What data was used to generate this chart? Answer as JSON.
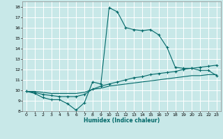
{
  "xlabel": "Humidex (Indice chaleur)",
  "background_color": "#c8e8e8",
  "grid_color": "#b0d0d0",
  "line_color": "#006868",
  "xlim": [
    -0.5,
    23.5
  ],
  "ylim": [
    8,
    18.5
  ],
  "xticks": [
    0,
    1,
    2,
    3,
    4,
    5,
    6,
    7,
    8,
    9,
    10,
    11,
    12,
    13,
    14,
    15,
    16,
    17,
    18,
    19,
    20,
    21,
    22,
    23
  ],
  "yticks": [
    8,
    9,
    10,
    11,
    12,
    13,
    14,
    15,
    16,
    17,
    18
  ],
  "series1_x": [
    0,
    1,
    2,
    3,
    4,
    5,
    6,
    7,
    8,
    9,
    10,
    11,
    12,
    13,
    14,
    15,
    16,
    17,
    18,
    19,
    20,
    21,
    22,
    23
  ],
  "series1_y": [
    9.9,
    9.7,
    9.3,
    9.1,
    9.1,
    8.7,
    8.1,
    8.8,
    10.8,
    10.6,
    17.9,
    17.5,
    16.0,
    15.8,
    15.7,
    15.8,
    15.3,
    14.1,
    12.2,
    12.1,
    12.1,
    11.9,
    11.9,
    11.4
  ],
  "series2_x": [
    0,
    1,
    2,
    3,
    4,
    5,
    6,
    7,
    8,
    9,
    10,
    11,
    12,
    13,
    14,
    15,
    16,
    17,
    18,
    19,
    20,
    21,
    22,
    23
  ],
  "series2_y": [
    9.9,
    9.8,
    9.6,
    9.5,
    9.4,
    9.4,
    9.4,
    9.6,
    10.1,
    10.4,
    10.6,
    10.8,
    11.0,
    11.2,
    11.3,
    11.5,
    11.6,
    11.7,
    11.8,
    12.0,
    12.1,
    12.2,
    12.3,
    12.4
  ],
  "series3_x": [
    0,
    1,
    2,
    3,
    4,
    5,
    6,
    7,
    8,
    9,
    10,
    11,
    12,
    13,
    14,
    15,
    16,
    17,
    18,
    19,
    20,
    21,
    22,
    23
  ],
  "series3_y": [
    9.9,
    9.9,
    9.8,
    9.7,
    9.7,
    9.7,
    9.7,
    9.8,
    10.1,
    10.2,
    10.4,
    10.5,
    10.6,
    10.7,
    10.8,
    10.9,
    11.0,
    11.1,
    11.2,
    11.3,
    11.4,
    11.4,
    11.5,
    11.5
  ]
}
